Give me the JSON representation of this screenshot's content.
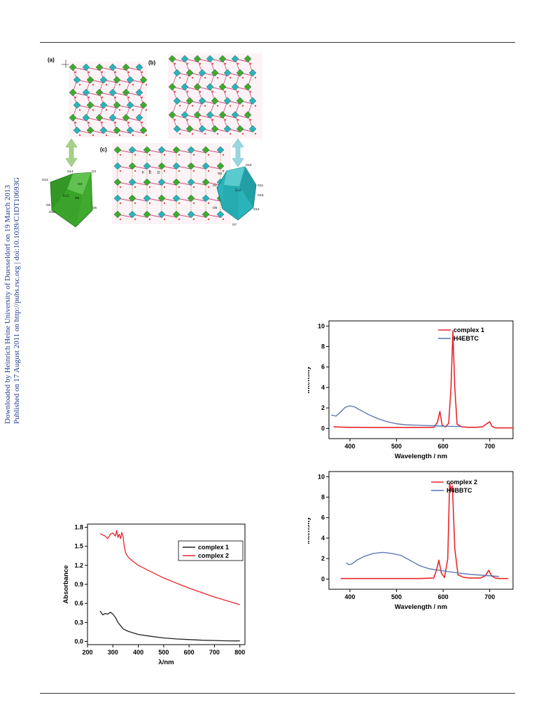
{
  "sidebar": {
    "line1": "Downloaded by Heinrich Heine University of Duesseldorf on 19 March 2013",
    "line2": "Published on 17 August 2011 on http://pubs.rsc.org | doi:10.1039/C1DT10693G"
  },
  "structure_figure": {
    "panel_labels": [
      "(a)",
      "(b)",
      "(c)"
    ],
    "polyhedron_a": {
      "center_label": "Eu1",
      "atom_labels": [
        "O14",
        "O4",
        "O13",
        "O3",
        "O9",
        "O6",
        "O10",
        "O5"
      ]
    },
    "polyhedron_b": {
      "center_label": "Eu2",
      "atom_labels": [
        "O15",
        "O2",
        "O1",
        "O11",
        "O16",
        "O8",
        "O7",
        "O12"
      ]
    },
    "channel_labels": [
      "F",
      "E",
      "D"
    ],
    "colors": {
      "green": "#3faa2e",
      "cyan": "#2ab3b8",
      "arrow_green": "#a6d18a",
      "arrow_cyan": "#9bd6e0"
    }
  },
  "chart_data": [
    {
      "type": "line",
      "id": "emission-1",
      "xlabel": "Wavelength / nm",
      "ylabel": "Intensity",
      "xlim": [
        355,
        750
      ],
      "ylim": [
        -1,
        10.5
      ],
      "xticks": [
        400,
        500,
        600,
        700
      ],
      "yticks": [
        0,
        2,
        4,
        6,
        8,
        10
      ],
      "legend_position": "top-right",
      "series": [
        {
          "name": "complex 1",
          "color": "#e8262b",
          "x": [
            365,
            400,
            450,
            500,
            550,
            580,
            588,
            593,
            598,
            605,
            612,
            617,
            621,
            625,
            630,
            640,
            655,
            670,
            685,
            690,
            700,
            705,
            712,
            720,
            750
          ],
          "y": [
            0.15,
            0.1,
            0.08,
            0.08,
            0.08,
            0.1,
            0.6,
            1.65,
            0.3,
            0.15,
            0.5,
            4.0,
            9.5,
            4.0,
            0.4,
            0.15,
            0.1,
            0.1,
            0.15,
            0.35,
            0.65,
            0.2,
            0.05,
            0.05,
            0.05
          ]
        },
        {
          "name": "H4EBTC",
          "color": "#5470b0",
          "x": [
            360,
            370,
            380,
            390,
            400,
            410,
            420,
            440,
            460,
            480,
            500,
            520,
            550,
            580,
            600,
            620,
            640
          ],
          "y": [
            1.3,
            1.2,
            1.6,
            2.05,
            2.2,
            2.1,
            1.85,
            1.35,
            0.95,
            0.65,
            0.45,
            0.35,
            0.3,
            0.25,
            0.22,
            0.2,
            0.18
          ]
        }
      ]
    },
    {
      "type": "line",
      "id": "emission-2",
      "xlabel": "Wavelength / nm",
      "ylabel": "Intensity",
      "xlim": [
        355,
        750
      ],
      "ylim": [
        -1,
        10.5
      ],
      "xticks": [
        400,
        500,
        600,
        700
      ],
      "yticks": [
        0,
        2,
        4,
        6,
        8,
        10
      ],
      "legend_position": "top-right",
      "series": [
        {
          "name": "complex 2",
          "color": "#e8262b",
          "x": [
            380,
            450,
            500,
            550,
            580,
            586,
            591,
            596,
            603,
            610,
            614,
            617,
            620,
            625,
            632,
            645,
            660,
            680,
            690,
            698,
            704,
            712,
            720,
            740
          ],
          "y": [
            0.05,
            0.05,
            0.05,
            0.05,
            0.1,
            0.9,
            1.85,
            0.6,
            0.15,
            2.0,
            9.4,
            8.7,
            9.1,
            3.0,
            0.4,
            0.15,
            0.1,
            0.1,
            0.3,
            0.85,
            0.3,
            0.1,
            0.05,
            0.05
          ]
        },
        {
          "name": "H4BBTC",
          "color": "#5470b0",
          "x": [
            392,
            398,
            405,
            415,
            430,
            450,
            470,
            490,
            510,
            530,
            550,
            570,
            600,
            630,
            660,
            690,
            720
          ],
          "y": [
            1.6,
            1.4,
            1.5,
            1.85,
            2.2,
            2.5,
            2.6,
            2.5,
            2.3,
            1.8,
            1.3,
            1.0,
            0.8,
            0.6,
            0.45,
            0.35,
            0.25
          ]
        }
      ]
    },
    {
      "type": "line",
      "id": "absorbance",
      "xlabel": "λ/nm",
      "ylabel": "Absorbance",
      "xlim": [
        200,
        820
      ],
      "ylim": [
        -0.05,
        1.85
      ],
      "xticks": [
        200,
        300,
        400,
        500,
        600,
        700,
        800
      ],
      "xtick_labels": [
        "200",
        "300",
        "400",
        "500",
        "600",
        "700",
        "800"
      ],
      "yticks": [
        0.0,
        0.3,
        0.6,
        0.9,
        1.2,
        1.5,
        1.8
      ],
      "ytick_labels": [
        "0.0",
        "0.3",
        "0.6",
        "0.9",
        "1.2",
        "1.5",
        "1.8"
      ],
      "legend_position": "top-right",
      "series": [
        {
          "name": "complex 1",
          "color": "#222222",
          "x": [
            250,
            260,
            270,
            280,
            290,
            300,
            310,
            320,
            330,
            340,
            360,
            400,
            450,
            500,
            550,
            600,
            650,
            700,
            750,
            800
          ],
          "y": [
            0.48,
            0.42,
            0.44,
            0.43,
            0.46,
            0.43,
            0.38,
            0.3,
            0.25,
            0.2,
            0.16,
            0.11,
            0.08,
            0.055,
            0.04,
            0.03,
            0.02,
            0.015,
            0.01,
            0.008
          ]
        },
        {
          "name": "complex 2",
          "color": "#e8262b",
          "x": [
            250,
            260,
            270,
            280,
            290,
            300,
            310,
            315,
            320,
            325,
            330,
            335,
            340,
            345,
            350,
            360,
            380,
            400,
            450,
            500,
            550,
            600,
            650,
            700,
            750,
            800
          ],
          "y": [
            1.7,
            1.68,
            1.66,
            1.62,
            1.69,
            1.71,
            1.66,
            1.75,
            1.64,
            1.69,
            1.62,
            1.72,
            1.66,
            1.5,
            1.4,
            1.33,
            1.26,
            1.2,
            1.1,
            1.0,
            0.92,
            0.84,
            0.77,
            0.7,
            0.64,
            0.58
          ]
        }
      ]
    }
  ]
}
